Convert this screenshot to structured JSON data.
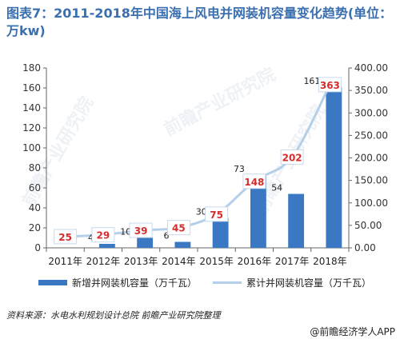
{
  "title": "图表7：2011-2018年中国海上风电并网装机容量变化趋势(单位：万kw)",
  "watermark": "前瞻产业研究院",
  "source": "资料来源：水电水利规划设计总院 前瞻产业研究院整理",
  "brand": "@前瞻经济学人APP",
  "colors": {
    "bar": "#3a78c4",
    "line": "#b5cfe9",
    "label_text": "#d62c2c"
  },
  "chart_data": {
    "type": "bar",
    "categories": [
      "2011年",
      "2012年",
      "2013年",
      "2014年",
      "2015年",
      "2016年",
      "2017年",
      "2018年"
    ],
    "series": [
      {
        "name": "新增并网装机容量（万千瓦）",
        "type": "bar",
        "axis": "left",
        "values": [
          null,
          4,
          10,
          6,
          30,
          73,
          54,
          161
        ]
      },
      {
        "name": "累计并网装机容量（万千瓦）",
        "type": "line",
        "axis": "right",
        "values": [
          25,
          29,
          39,
          45,
          75,
          148,
          202,
          363
        ]
      }
    ],
    "left_axis": {
      "ticks": [
        "0",
        "20",
        "40",
        "60",
        "80",
        "100",
        "120",
        "140",
        "160",
        "180"
      ],
      "ylim": [
        0,
        180
      ]
    },
    "right_axis": {
      "ticks": [
        "0.00",
        "50.00",
        "100.00",
        "150.00",
        "200.00",
        "250.00",
        "300.00",
        "350.00",
        "400.00"
      ],
      "ylim": [
        0,
        400
      ]
    },
    "grid": false,
    "legend": "bottom"
  }
}
